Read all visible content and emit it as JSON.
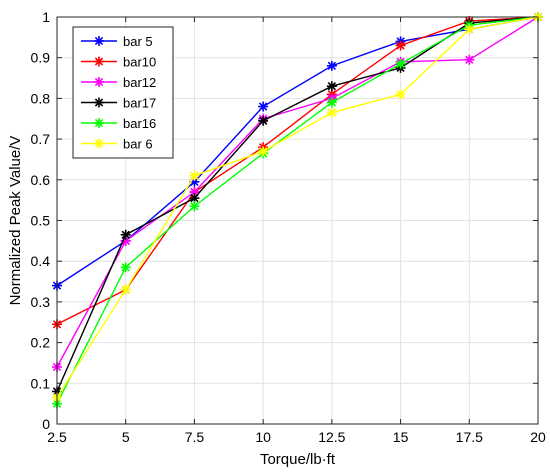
{
  "chart_data": {
    "type": "line",
    "title": "",
    "xlabel": "Torque/lb·ft",
    "ylabel": "Normalized Peak Value/V",
    "xlim": [
      2.5,
      20
    ],
    "ylim": [
      0,
      1
    ],
    "grid": true,
    "legend_position": "top-left",
    "x": [
      2.5,
      5,
      7.5,
      10,
      12.5,
      15,
      17.5,
      20
    ],
    "x_tick_labels": [
      "2.5",
      "5",
      "7.5",
      "10",
      "12.5",
      "15",
      "17.5",
      "20"
    ],
    "y_tick_labels": [
      "0",
      "0.1",
      "0.2",
      "0.3",
      "0.4",
      "0.5",
      "0.6",
      "0.7",
      "0.8",
      "0.9",
      "1"
    ],
    "y_ticks": [
      0,
      0.1,
      0.2,
      0.3,
      0.4,
      0.5,
      0.6,
      0.7,
      0.8,
      0.9,
      1
    ],
    "marker": "asterisk",
    "series": [
      {
        "name": "bar 5",
        "color": "#0000ff",
        "values": [
          0.34,
          0.45,
          0.595,
          0.78,
          0.88,
          0.94,
          0.97,
          1.0
        ]
      },
      {
        "name": "bar10",
        "color": "#ff0000",
        "values": [
          0.245,
          0.33,
          0.57,
          0.68,
          0.81,
          0.93,
          0.99,
          1.0
        ]
      },
      {
        "name": "bar12",
        "color": "#ff00ff",
        "values": [
          0.14,
          0.45,
          0.57,
          0.75,
          0.8,
          0.89,
          0.895,
          1.0
        ]
      },
      {
        "name": "bar17",
        "color": "#000000",
        "values": [
          0.08,
          0.465,
          0.555,
          0.745,
          0.83,
          0.875,
          0.985,
          1.0
        ]
      },
      {
        "name": "bar16",
        "color": "#00ff00",
        "values": [
          0.05,
          0.385,
          0.535,
          0.665,
          0.79,
          0.885,
          0.98,
          1.0
        ]
      },
      {
        "name": "bar 6",
        "color": "#ffff00",
        "values": [
          0.065,
          0.33,
          0.61,
          0.67,
          0.765,
          0.81,
          0.97,
          1.0
        ]
      }
    ]
  }
}
